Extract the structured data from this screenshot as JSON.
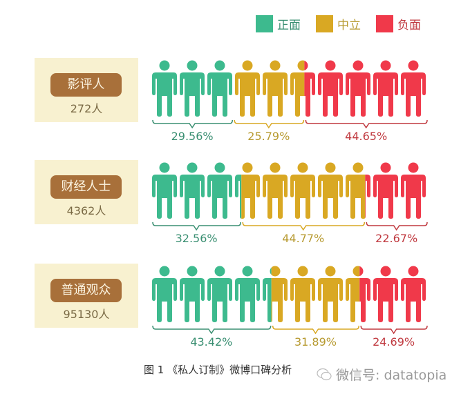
{
  "colors": {
    "positive": "#3dba8e",
    "neutral": "#d9a823",
    "negative": "#f0394a",
    "positive_text": "#3a8f72",
    "neutral_text": "#b79a30",
    "negative_text": "#c0393f"
  },
  "legend": [
    {
      "label": "正面",
      "color": "#3dba8e",
      "text": "#3a8f72"
    },
    {
      "label": "中立",
      "color": "#d9a823",
      "text": "#b79a30"
    },
    {
      "label": "负面",
      "color": "#f0394a",
      "text": "#c0393f"
    }
  ],
  "groups": [
    {
      "name": "影评人",
      "count": "272人",
      "positive": "29.56%",
      "neutral": "25.79%",
      "negative": "44.65%"
    },
    {
      "name": "财经人士",
      "count": "4362人",
      "positive": "32.56%",
      "neutral": "44.77%",
      "negative": "22.67%"
    },
    {
      "name": "普通观众",
      "count": "95130人",
      "positive": "43.42%",
      "neutral": "31.89%",
      "negative": "24.69%"
    }
  ],
  "caption": "图 1  《私人订制》微博口碑分析",
  "watermark": "微信号: datatopia",
  "chart_data": {
    "type": "bar",
    "title": "《私人订制》微博口碑分析",
    "figure_label": "图 1",
    "categories": [
      "影评人",
      "财经人士",
      "普通观众"
    ],
    "sample_sizes": [
      272,
      4362,
      95130
    ],
    "series": [
      {
        "name": "正面",
        "values": [
          29.56,
          32.56,
          43.42
        ]
      },
      {
        "name": "中立",
        "values": [
          25.79,
          44.77,
          31.89
        ]
      },
      {
        "name": "负面",
        "values": [
          44.65,
          22.67,
          24.69
        ]
      }
    ],
    "unit": "%",
    "layout": "100% stacked pictogram, 10 person icons per row",
    "legend_position": "top-right"
  }
}
